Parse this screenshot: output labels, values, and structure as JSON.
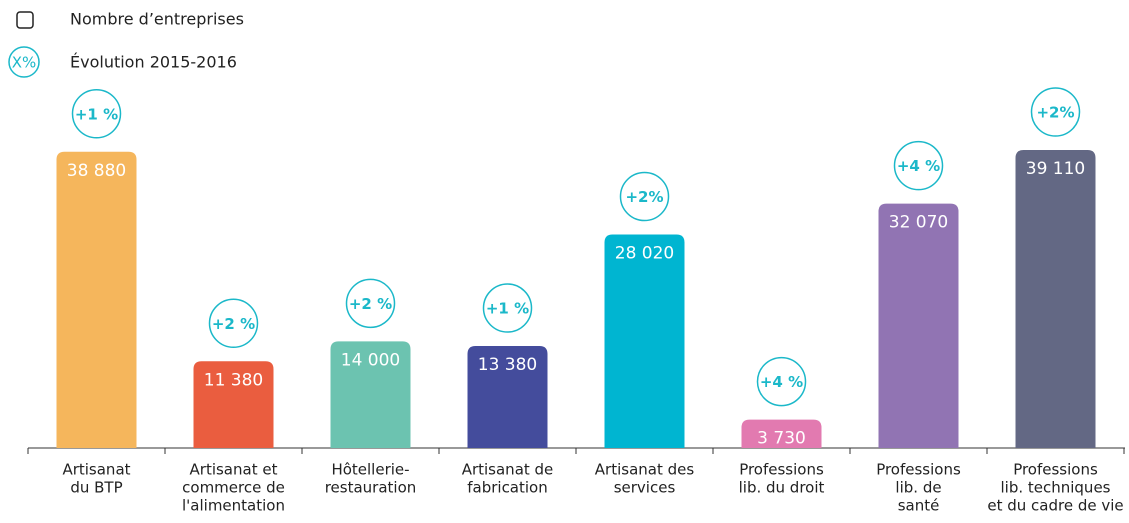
{
  "chart_data": {
    "type": "bar",
    "legend": {
      "count_label": "Nombre d’entreprises",
      "growth_symbol": "X%",
      "growth_label": "Évolution 2015-2016"
    },
    "categories": [
      [
        "Artisanat",
        "du BTP"
      ],
      [
        "Artisanat et",
        "commerce de",
        "l'alimentation"
      ],
      [
        "Hôtellerie-",
        "restauration"
      ],
      [
        "Artisanat de",
        "fabrication"
      ],
      [
        "Artisanat des",
        "services"
      ],
      [
        "Professions",
        "lib. du droit"
      ],
      [
        "Professions",
        "lib. de",
        "santé"
      ],
      [
        "Professions",
        "lib. techniques",
        "et du cadre de vie"
      ]
    ],
    "values": [
      38880,
      11380,
      14000,
      13380,
      28020,
      3730,
      32070,
      39110
    ],
    "value_labels": [
      "38 880",
      "11 380",
      "14 000",
      "13 380",
      "28 020",
      "3 730",
      "32 070",
      "39 110"
    ],
    "colors": [
      "#f5b65c",
      "#ea5d3f",
      "#6cc3b0",
      "#444c9c",
      "#00b5d1",
      "#e27ab0",
      "#9174b3",
      "#636884"
    ],
    "growth": [
      1,
      2,
      2,
      1,
      2,
      4,
      4,
      2
    ],
    "growth_labels": [
      "+1 %",
      "+2 %",
      "+2 %",
      "+1 %",
      "+2%",
      "+4 %",
      "+4 %",
      "+2%"
    ],
    "growth_color": "#1bb8c9"
  }
}
